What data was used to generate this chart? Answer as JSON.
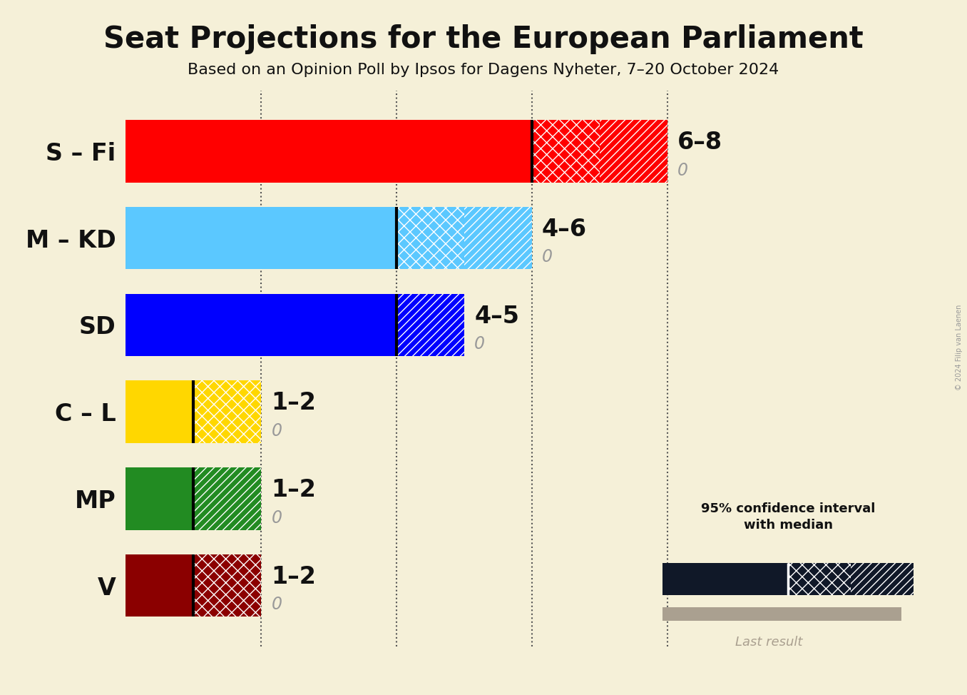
{
  "title": "Seat Projections for the European Parliament",
  "subtitle": "Based on an Opinion Poll by Ipsos for Dagens Nyheter, 7–20 October 2024",
  "copyright": "© 2024 Filip van Laenen",
  "background_color": "#f5f0d8",
  "parties": [
    "S – Fi",
    "M – KD",
    "SD",
    "C – L",
    "MP",
    "V"
  ],
  "low_seats": [
    6,
    4,
    4,
    1,
    1,
    1
  ],
  "high_seats": [
    8,
    6,
    5,
    2,
    2,
    2
  ],
  "colors": [
    "#FF0000",
    "#5BC8FF",
    "#0000FF",
    "#FFD700",
    "#228B22",
    "#8B0000"
  ],
  "hatch_types": [
    "xx,///",
    "xx,///",
    "///",
    "xx",
    "///",
    "xx"
  ],
  "labels": [
    "6–8",
    "4–6",
    "4–5",
    "1–2",
    "1–2",
    "1–2"
  ],
  "x_max": 10,
  "dotted_lines": [
    2,
    4,
    6,
    8
  ],
  "bar_height": 0.72,
  "title_fontsize": 30,
  "subtitle_fontsize": 16,
  "party_fontsize": 24,
  "seat_label_fontsize": 24,
  "zero_label_fontsize": 17
}
